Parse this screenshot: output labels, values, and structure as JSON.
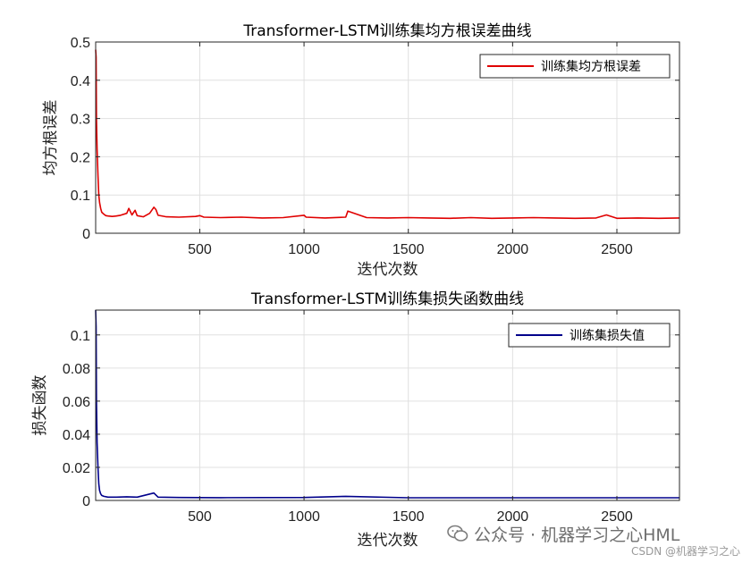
{
  "chart_data": [
    {
      "type": "line",
      "title": "Transformer-LSTM训练集均方根误差曲线",
      "xlabel": "迭代次数",
      "ylabel": "均方根误差",
      "xlim": [
        1,
        2800
      ],
      "ylim": [
        0,
        0.5
      ],
      "xticks": [
        500,
        1000,
        1500,
        2000,
        2500
      ],
      "yticks": [
        0,
        0.1,
        0.2,
        0.3,
        0.4,
        0.5
      ],
      "yticklabels": [
        "0",
        "0.1",
        "0.2",
        "0.3",
        "0.4",
        "0.5"
      ],
      "grid": true,
      "legend_position": "top-right",
      "series": [
        {
          "name": "训练集均方根误差",
          "color": "#e00000",
          "x": [
            1,
            3,
            5,
            8,
            12,
            16,
            20,
            25,
            30,
            40,
            50,
            60,
            80,
            100,
            120,
            150,
            160,
            175,
            190,
            200,
            230,
            260,
            280,
            290,
            300,
            340,
            400,
            480,
            500,
            520,
            600,
            700,
            800,
            900,
            1000,
            1010,
            1100,
            1200,
            1210,
            1300,
            1400,
            1500,
            1600,
            1700,
            1800,
            1900,
            2000,
            2100,
            2200,
            2300,
            2400,
            2450,
            2500,
            2600,
            2700,
            2800
          ],
          "y": [
            0.48,
            0.46,
            0.3,
            0.22,
            0.15,
            0.1,
            0.08,
            0.065,
            0.055,
            0.05,
            0.046,
            0.045,
            0.044,
            0.045,
            0.047,
            0.052,
            0.065,
            0.048,
            0.06,
            0.046,
            0.043,
            0.052,
            0.068,
            0.062,
            0.047,
            0.043,
            0.042,
            0.044,
            0.046,
            0.042,
            0.041,
            0.042,
            0.04,
            0.041,
            0.047,
            0.042,
            0.04,
            0.042,
            0.058,
            0.041,
            0.04,
            0.041,
            0.04,
            0.039,
            0.041,
            0.039,
            0.04,
            0.041,
            0.04,
            0.039,
            0.04,
            0.048,
            0.039,
            0.04,
            0.039,
            0.04
          ]
        }
      ]
    },
    {
      "type": "line",
      "title": "Transformer-LSTM训练集损失函数曲线",
      "xlabel": "迭代次数",
      "ylabel": "损失函数",
      "xlim": [
        1,
        2800
      ],
      "ylim": [
        0,
        0.115
      ],
      "xticks": [
        500,
        1000,
        1500,
        2000,
        2500
      ],
      "yticks": [
        0,
        0.02,
        0.04,
        0.06,
        0.08,
        0.1
      ],
      "yticklabels": [
        "0",
        "0.02",
        "0.04",
        "0.06",
        "0.08",
        "0.1"
      ],
      "grid": true,
      "legend_position": "top-right",
      "series": [
        {
          "name": "训练集损失值",
          "color": "#00008b",
          "x": [
            1,
            3,
            5,
            8,
            12,
            16,
            20,
            25,
            30,
            40,
            60,
            100,
            150,
            200,
            280,
            300,
            400,
            600,
            1000,
            1200,
            1500,
            2000,
            2500,
            2800
          ],
          "y": [
            0.115,
            0.105,
            0.06,
            0.035,
            0.02,
            0.01,
            0.006,
            0.004,
            0.003,
            0.0025,
            0.002,
            0.002,
            0.0022,
            0.002,
            0.0045,
            0.002,
            0.0018,
            0.0017,
            0.0018,
            0.0025,
            0.0016,
            0.0016,
            0.0016,
            0.0016
          ]
        }
      ]
    }
  ],
  "watermark": {
    "text": "公众号 · 机器学习之心HML",
    "icon": "wechat-icon",
    "csdn": "CSDN @机器学习之心"
  }
}
